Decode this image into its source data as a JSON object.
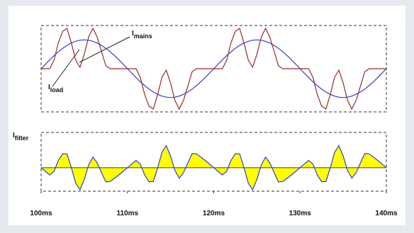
{
  "chart_data": [
    {
      "type": "line",
      "x": [
        100,
        100.5,
        101,
        101.5,
        102,
        102.5,
        103,
        103.5,
        104,
        104.5,
        105,
        105.5,
        106,
        106.5,
        107,
        107.5,
        108,
        108.5,
        109,
        109.5,
        110,
        110.5,
        111,
        111.5,
        112,
        112.5,
        113,
        113.5,
        114,
        114.5,
        115,
        115.5,
        116,
        116.5,
        117,
        117.5,
        118,
        118.5,
        119,
        119.5,
        120,
        120.5,
        121,
        121.5,
        122,
        122.5,
        123,
        123.5,
        124,
        124.5,
        125,
        125.5,
        126,
        126.5,
        127,
        127.5,
        128,
        128.5,
        129,
        129.5,
        130,
        130.5,
        131,
        131.5,
        132,
        132.5,
        133,
        133.5,
        134,
        134.5,
        135,
        135.5,
        136,
        136.5,
        137,
        137.5,
        138,
        138.5,
        139,
        139.5,
        140
      ],
      "xlim": [
        100,
        140
      ],
      "ylim": [
        -1.5,
        1.5
      ],
      "annotations": [
        {
          "text": "I",
          "sub": "mains"
        },
        {
          "text": "I",
          "sub": "load"
        }
      ],
      "series": [
        {
          "color": "#2f3fd0",
          "values": [
            0,
            0.156,
            0.309,
            0.454,
            0.588,
            0.707,
            0.809,
            0.891,
            0.951,
            0.988,
            1,
            0.988,
            0.951,
            0.891,
            0.809,
            0.707,
            0.588,
            0.454,
            0.309,
            0.156,
            0,
            -0.156,
            -0.309,
            -0.454,
            -0.588,
            -0.707,
            -0.809,
            -0.891,
            -0.951,
            -0.988,
            -1,
            -0.988,
            -0.951,
            -0.891,
            -0.809,
            -0.707,
            -0.588,
            -0.454,
            -0.309,
            -0.156,
            0,
            0.156,
            0.309,
            0.454,
            0.588,
            0.707,
            0.809,
            0.891,
            0.951,
            0.988,
            1,
            0.988,
            0.951,
            0.891,
            0.809,
            0.707,
            0.588,
            0.454,
            0.309,
            0.156,
            0,
            -0.156,
            -0.309,
            -0.454,
            -0.588,
            -0.707,
            -0.809,
            -0.891,
            -0.951,
            -0.988,
            -1,
            -0.988,
            -0.951,
            -0.891,
            -0.809,
            -0.707,
            -0.588,
            -0.454,
            -0.309,
            -0.156,
            0
          ]
        },
        {
          "color": "#9a2a26",
          "values": [
            0,
            0,
            0,
            0.3,
            0.9,
            1.3,
            1.4,
            0.9,
            0.3,
            0.05,
            0.5,
            1.1,
            1.4,
            1.1,
            0.6,
            0.1,
            0,
            0,
            0,
            0,
            0,
            0,
            0,
            -0.3,
            -0.9,
            -1.3,
            -1.4,
            -0.9,
            -0.3,
            -0.05,
            -0.5,
            -1.1,
            -1.4,
            -1.1,
            -0.6,
            -0.1,
            0,
            0,
            0,
            0,
            0,
            0,
            0,
            0.3,
            0.9,
            1.3,
            1.4,
            0.9,
            0.3,
            0.05,
            0.5,
            1.1,
            1.4,
            1.1,
            0.6,
            0.1,
            0,
            0,
            0,
            0,
            0,
            0,
            0,
            -0.3,
            -0.9,
            -1.3,
            -1.4,
            -0.9,
            -0.3,
            -0.05,
            -0.5,
            -1.1,
            -1.4,
            -1.1,
            -0.6,
            -0.1,
            0,
            0,
            0,
            0,
            0
          ]
        }
      ]
    },
    {
      "type": "area",
      "x": [
        100,
        100.5,
        101,
        101.5,
        102,
        102.5,
        103,
        103.5,
        104,
        104.5,
        105,
        105.5,
        106,
        106.5,
        107,
        107.5,
        108,
        108.5,
        109,
        109.5,
        110,
        110.5,
        111,
        111.5,
        112,
        112.5,
        113,
        113.5,
        114,
        114.5,
        115,
        115.5,
        116,
        116.5,
        117,
        117.5,
        118,
        118.5,
        119,
        119.5,
        120,
        120.5,
        121,
        121.5,
        122,
        122.5,
        123,
        123.5,
        124,
        124.5,
        125,
        125.5,
        126,
        126.5,
        127,
        127.5,
        128,
        128.5,
        129,
        129.5,
        130,
        130.5,
        131,
        131.5,
        132,
        132.5,
        133,
        133.5,
        134,
        134.5,
        135,
        135.5,
        136,
        136.5,
        137,
        137.5,
        138,
        138.5,
        139,
        139.5,
        140
      ],
      "xlim": [
        100,
        140
      ],
      "ylim": [
        -1,
        1.5
      ],
      "xticks": [
        {
          "value": 100,
          "label": "100ms"
        },
        {
          "value": 110,
          "label": "110ms"
        },
        {
          "value": 120,
          "label": "120ms"
        },
        {
          "value": 130,
          "label": "130ms"
        },
        {
          "value": 140,
          "label": "140ms"
        }
      ],
      "annotations": [
        {
          "text": "I",
          "sub": "filter"
        }
      ],
      "series": [
        {
          "color": "#2f3fd0",
          "fill": "#ffff00",
          "values": [
            0,
            -0.156,
            -0.309,
            -0.154,
            0.312,
            0.593,
            0.591,
            0.009,
            -0.651,
            -0.938,
            -0.5,
            0.112,
            0.449,
            0.209,
            -0.209,
            -0.607,
            -0.588,
            -0.454,
            -0.309,
            -0.156,
            0,
            0.156,
            0.309,
            0.154,
            -0.312,
            -0.593,
            -0.591,
            -0.009,
            0.651,
            0.938,
            0.5,
            -0.112,
            -0.449,
            -0.209,
            0.209,
            0.607,
            0.588,
            0.454,
            0.309,
            0.156,
            0,
            -0.156,
            -0.309,
            -0.154,
            0.312,
            0.593,
            0.591,
            0.009,
            -0.651,
            -0.938,
            -0.5,
            0.112,
            0.449,
            0.209,
            -0.209,
            -0.607,
            -0.588,
            -0.454,
            -0.309,
            -0.156,
            0,
            0.156,
            0.309,
            0.154,
            -0.312,
            -0.593,
            -0.591,
            -0.009,
            0.651,
            0.938,
            0.5,
            -0.112,
            -0.449,
            -0.209,
            0.209,
            0.607,
            0.588,
            0.454,
            0.309,
            0.156,
            0
          ]
        }
      ]
    }
  ]
}
